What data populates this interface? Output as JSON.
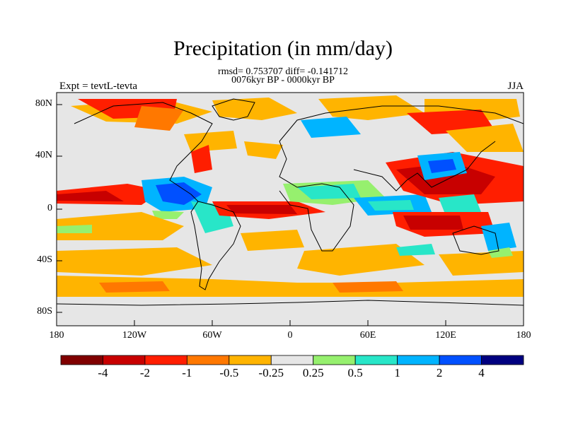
{
  "title": "Precipitation (in mm/day)",
  "stats_line": "rmsd= 0.753707 diff= -0.141712",
  "period_line": "0076kyr BP - 0000kyr BP",
  "experiment_label": "Expt = tevtL-tevta",
  "season_label": "JJA",
  "y_ticks": [
    "80N",
    "40N",
    "0",
    "40S",
    "80S"
  ],
  "x_ticks": [
    "180",
    "120W",
    "60W",
    "0",
    "60E",
    "120E",
    "180"
  ],
  "colorbar": {
    "colors": [
      "#800000",
      "#c80000",
      "#ff1e00",
      "#ff7800",
      "#ffb400",
      "#e6e6e6",
      "#96f06e",
      "#28e6c8",
      "#00b4ff",
      "#0050ff",
      "#000080"
    ],
    "labels": [
      "-4",
      "-2",
      "-1",
      "-0.5",
      "-0.25",
      "0.25",
      "0.5",
      "1",
      "2",
      "4"
    ]
  },
  "map_background": "#e6e6e6"
}
